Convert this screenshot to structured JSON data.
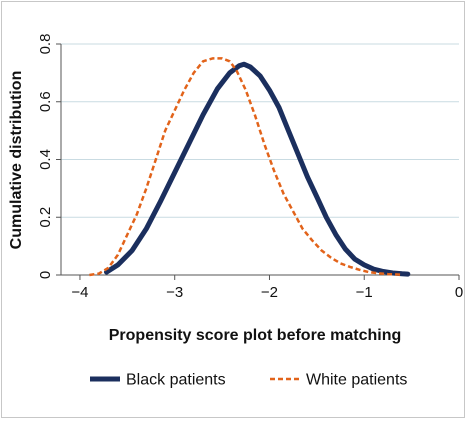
{
  "chart_data": {
    "type": "line",
    "title": "",
    "xlabel": "Propensity score plot before matching",
    "ylabel": "Cumulative distribution",
    "xlim": [
      -4.2,
      0
    ],
    "ylim": [
      0,
      0.8
    ],
    "x_ticks": [
      -4,
      -3,
      -2,
      -1,
      0
    ],
    "x_tick_labels": [
      "−4",
      "−3",
      "−2",
      "−1",
      "0"
    ],
    "y_ticks": [
      0,
      0.2,
      0.4,
      0.6,
      0.8
    ],
    "y_tick_labels": [
      "0",
      "0.2",
      "0.4",
      "0.6",
      "0.8"
    ],
    "grid": true,
    "legend_position": "bottom",
    "series": [
      {
        "name": "Black patients",
        "color": "#1b2f5e",
        "style": "solid",
        "x": [
          -3.72,
          -3.6,
          -3.45,
          -3.3,
          -3.15,
          -3.0,
          -2.85,
          -2.7,
          -2.55,
          -2.42,
          -2.32,
          -2.27,
          -2.2,
          -2.1,
          -2.0,
          -1.9,
          -1.8,
          -1.7,
          -1.6,
          -1.5,
          -1.4,
          -1.3,
          -1.2,
          -1.1,
          -1.0,
          -0.9,
          -0.8,
          -0.7,
          -0.6,
          -0.54
        ],
        "y": [
          0.01,
          0.035,
          0.085,
          0.16,
          0.255,
          0.355,
          0.455,
          0.555,
          0.645,
          0.7,
          0.725,
          0.73,
          0.72,
          0.69,
          0.64,
          0.58,
          0.5,
          0.42,
          0.34,
          0.27,
          0.2,
          0.14,
          0.09,
          0.055,
          0.035,
          0.02,
          0.012,
          0.007,
          0.004,
          0.003
        ]
      },
      {
        "name": "White patients",
        "color": "#e2631a",
        "style": "dashed",
        "x": [
          -3.9,
          -3.8,
          -3.7,
          -3.6,
          -3.5,
          -3.4,
          -3.3,
          -3.2,
          -3.1,
          -3.0,
          -2.9,
          -2.8,
          -2.7,
          -2.6,
          -2.5,
          -2.42,
          -2.35,
          -2.25,
          -2.15,
          -2.05,
          -1.95,
          -1.85,
          -1.75,
          -1.65,
          -1.55,
          -1.45,
          -1.35,
          -1.25,
          -1.15,
          -1.05,
          -0.95,
          -0.85,
          -0.75,
          -0.6
        ],
        "y": [
          0.0,
          0.005,
          0.025,
          0.07,
          0.14,
          0.21,
          0.3,
          0.4,
          0.5,
          0.57,
          0.64,
          0.7,
          0.74,
          0.75,
          0.75,
          0.74,
          0.71,
          0.64,
          0.55,
          0.45,
          0.36,
          0.28,
          0.22,
          0.16,
          0.12,
          0.085,
          0.06,
          0.04,
          0.028,
          0.018,
          0.01,
          0.006,
          0.003,
          0.001
        ]
      }
    ]
  }
}
